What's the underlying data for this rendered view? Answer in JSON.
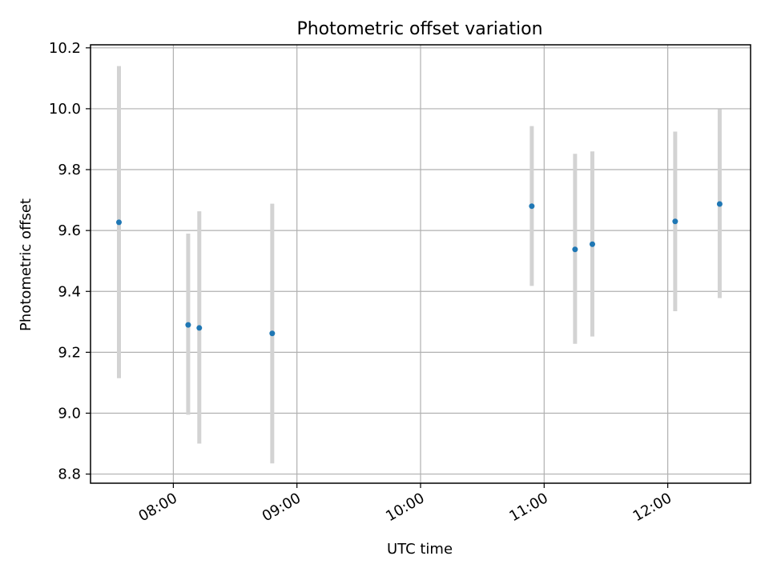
{
  "chart_data": {
    "type": "scatter",
    "title": "Photometric offset variation",
    "xlabel": "UTC time",
    "ylabel": "Photometric offset",
    "grid": true,
    "xlim_hours": [
      7.33,
      12.67
    ],
    "ylim": [
      8.77,
      10.21
    ],
    "x_ticks": [
      {
        "value": 8,
        "label": "08:00"
      },
      {
        "value": 9,
        "label": "09:00"
      },
      {
        "value": 10,
        "label": "10:00"
      },
      {
        "value": 11,
        "label": "11:00"
      },
      {
        "value": 12,
        "label": "12:00"
      }
    ],
    "y_ticks": [
      {
        "value": 8.8,
        "label": "8.8"
      },
      {
        "value": 9.0,
        "label": "9.0"
      },
      {
        "value": 9.2,
        "label": "9.2"
      },
      {
        "value": 9.4,
        "label": "9.4"
      },
      {
        "value": 9.6,
        "label": "9.6"
      },
      {
        "value": 9.8,
        "label": "9.8"
      },
      {
        "value": 10.0,
        "label": "10.0"
      },
      {
        "value": 10.2,
        "label": "10.2"
      }
    ],
    "series": [
      {
        "name": "offset",
        "color": "#1f77b4",
        "error_color": "#d3d3d3",
        "points": [
          {
            "x": 7.56,
            "y": 9.627,
            "low": 9.115,
            "high": 10.14
          },
          {
            "x": 8.12,
            "y": 9.29,
            "low": 8.995,
            "high": 9.59
          },
          {
            "x": 8.21,
            "y": 9.28,
            "low": 8.9,
            "high": 9.663
          },
          {
            "x": 8.8,
            "y": 9.262,
            "low": 8.835,
            "high": 9.688
          },
          {
            "x": 10.9,
            "y": 9.68,
            "low": 9.418,
            "high": 9.943
          },
          {
            "x": 11.25,
            "y": 9.538,
            "low": 9.228,
            "high": 9.852
          },
          {
            "x": 11.39,
            "y": 9.555,
            "low": 9.252,
            "high": 9.86
          },
          {
            "x": 12.06,
            "y": 9.63,
            "low": 9.335,
            "high": 9.925
          },
          {
            "x": 12.42,
            "y": 9.687,
            "low": 9.378,
            "high": 9.998
          }
        ]
      }
    ]
  }
}
